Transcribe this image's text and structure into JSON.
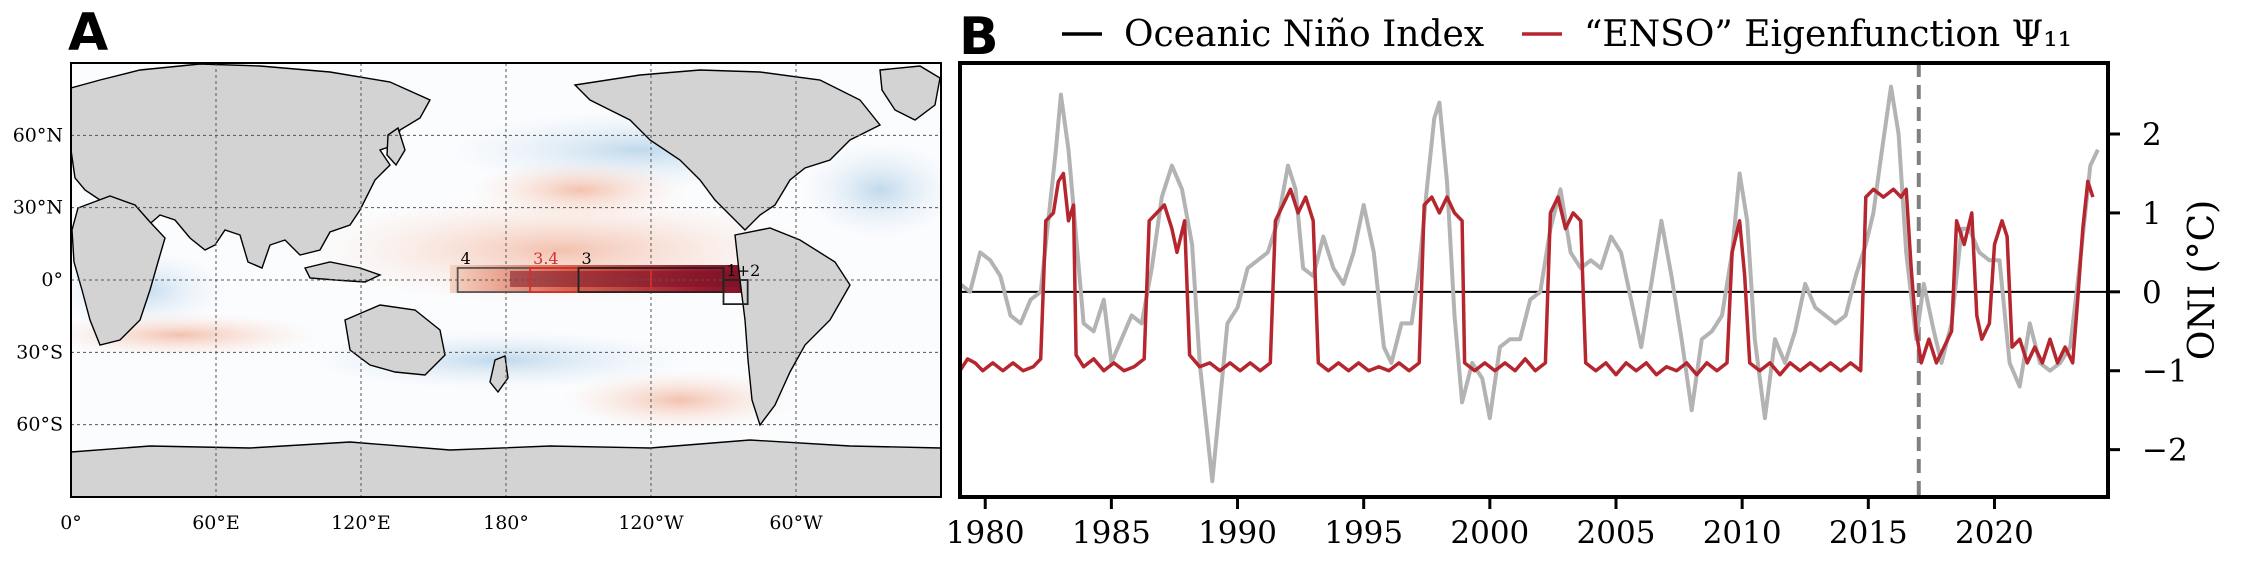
{
  "panels": {
    "a_label": "A",
    "b_label": "B"
  },
  "map": {
    "lat_ticks": [
      "60°N",
      "30°N",
      "0°",
      "30°S",
      "60°S"
    ],
    "lat_values": [
      60,
      30,
      0,
      -30,
      -60
    ],
    "lon_ticks": [
      "0°",
      "60°E",
      "120°E",
      "180°",
      "120°W",
      "60°W"
    ],
    "lon_values": [
      0,
      60,
      120,
      180,
      240,
      300
    ],
    "regions": [
      {
        "label": "4",
        "lon": [
          160,
          210
        ],
        "lat": [
          -5,
          5
        ],
        "color": "#555555"
      },
      {
        "label": "3.4",
        "lon": [
          190,
          240
        ],
        "lat": [
          -5,
          5
        ],
        "color": "#d32f2f"
      },
      {
        "label": "3",
        "lon": [
          210,
          270
        ],
        "lat": [
          -5,
          5
        ],
        "color": "#222222"
      },
      {
        "label": "1+2",
        "lon": [
          270,
          280
        ],
        "lat": [
          -10,
          0
        ],
        "color": "#222222"
      }
    ],
    "colors": {
      "land": "#d3d3d3",
      "warm": "#b2182b",
      "cool": "#9ecae1"
    }
  },
  "chart_data": {
    "type": "line",
    "legend_position": "top",
    "ylabel": "ONI (°C)",
    "xlim": [
      1979.0,
      2024.5
    ],
    "ylim": [
      -2.6,
      2.9
    ],
    "x_ticks": [
      1980,
      1985,
      1990,
      1995,
      2000,
      2005,
      2010,
      2015,
      2020
    ],
    "y_ticks": [
      -2,
      -1,
      0,
      1,
      2
    ],
    "vline": 2017.0,
    "hline": 0,
    "series": [
      {
        "name": "Oceanic Niño Index",
        "legend_color": "#000000",
        "color": "#b3b3b3",
        "points": [
          [
            1979.0,
            0.1
          ],
          [
            1979.4,
            0.0
          ],
          [
            1979.8,
            0.5
          ],
          [
            1980.2,
            0.4
          ],
          [
            1980.6,
            0.2
          ],
          [
            1981.0,
            -0.3
          ],
          [
            1981.4,
            -0.4
          ],
          [
            1981.8,
            -0.1
          ],
          [
            1982.2,
            0.0
          ],
          [
            1982.5,
            0.9
          ],
          [
            1982.8,
            1.8
          ],
          [
            1983.0,
            2.5
          ],
          [
            1983.3,
            1.8
          ],
          [
            1983.6,
            0.7
          ],
          [
            1983.9,
            -0.4
          ],
          [
            1984.3,
            -0.5
          ],
          [
            1984.7,
            -0.1
          ],
          [
            1985.0,
            -0.9
          ],
          [
            1985.4,
            -0.6
          ],
          [
            1985.8,
            -0.3
          ],
          [
            1986.2,
            -0.4
          ],
          [
            1986.6,
            0.3
          ],
          [
            1987.0,
            1.2
          ],
          [
            1987.4,
            1.6
          ],
          [
            1987.8,
            1.3
          ],
          [
            1988.2,
            0.6
          ],
          [
            1988.5,
            -0.9
          ],
          [
            1988.8,
            -1.8
          ],
          [
            1989.0,
            -2.4
          ],
          [
            1989.3,
            -1.4
          ],
          [
            1989.6,
            -0.4
          ],
          [
            1990.0,
            -0.2
          ],
          [
            1990.4,
            0.3
          ],
          [
            1990.8,
            0.4
          ],
          [
            1991.2,
            0.5
          ],
          [
            1991.6,
            0.9
          ],
          [
            1992.0,
            1.6
          ],
          [
            1992.3,
            1.3
          ],
          [
            1992.6,
            0.3
          ],
          [
            1993.0,
            0.2
          ],
          [
            1993.4,
            0.7
          ],
          [
            1993.8,
            0.3
          ],
          [
            1994.2,
            0.1
          ],
          [
            1994.6,
            0.5
          ],
          [
            1995.0,
            1.1
          ],
          [
            1995.4,
            0.5
          ],
          [
            1995.8,
            -0.7
          ],
          [
            1996.1,
            -0.9
          ],
          [
            1996.5,
            -0.4
          ],
          [
            1996.9,
            -0.4
          ],
          [
            1997.2,
            0.3
          ],
          [
            1997.5,
            1.3
          ],
          [
            1997.8,
            2.2
          ],
          [
            1998.0,
            2.4
          ],
          [
            1998.3,
            1.4
          ],
          [
            1998.6,
            -0.3
          ],
          [
            1998.9,
            -1.4
          ],
          [
            1999.3,
            -0.9
          ],
          [
            1999.7,
            -1.1
          ],
          [
            2000.0,
            -1.6
          ],
          [
            2000.4,
            -0.7
          ],
          [
            2000.8,
            -0.6
          ],
          [
            2001.2,
            -0.6
          ],
          [
            2001.6,
            -0.1
          ],
          [
            2002.0,
            0.0
          ],
          [
            2002.4,
            0.8
          ],
          [
            2002.8,
            1.3
          ],
          [
            2003.2,
            0.5
          ],
          [
            2003.6,
            0.3
          ],
          [
            2004.0,
            0.4
          ],
          [
            2004.4,
            0.3
          ],
          [
            2004.8,
            0.7
          ],
          [
            2005.2,
            0.5
          ],
          [
            2005.6,
            -0.1
          ],
          [
            2006.0,
            -0.7
          ],
          [
            2006.4,
            0.1
          ],
          [
            2006.8,
            0.9
          ],
          [
            2007.2,
            0.2
          ],
          [
            2007.6,
            -0.6
          ],
          [
            2008.0,
            -1.5
          ],
          [
            2008.4,
            -0.6
          ],
          [
            2008.8,
            -0.5
          ],
          [
            2009.2,
            -0.3
          ],
          [
            2009.6,
            0.5
          ],
          [
            2009.9,
            1.5
          ],
          [
            2010.2,
            0.9
          ],
          [
            2010.5,
            -0.6
          ],
          [
            2010.9,
            -1.6
          ],
          [
            2011.3,
            -0.6
          ],
          [
            2011.7,
            -0.9
          ],
          [
            2012.1,
            -0.5
          ],
          [
            2012.5,
            0.1
          ],
          [
            2012.9,
            -0.2
          ],
          [
            2013.3,
            -0.3
          ],
          [
            2013.7,
            -0.4
          ],
          [
            2014.1,
            -0.3
          ],
          [
            2014.5,
            0.2
          ],
          [
            2014.9,
            0.6
          ],
          [
            2015.2,
            1.0
          ],
          [
            2015.5,
            1.7
          ],
          [
            2015.9,
            2.6
          ],
          [
            2016.2,
            2.0
          ],
          [
            2016.5,
            0.5
          ],
          [
            2016.9,
            -0.6
          ],
          [
            2017.2,
            0.1
          ],
          [
            2017.6,
            -0.5
          ],
          [
            2017.9,
            -0.9
          ],
          [
            2018.3,
            -0.4
          ],
          [
            2018.7,
            0.8
          ],
          [
            2019.0,
            0.8
          ],
          [
            2019.4,
            0.5
          ],
          [
            2019.8,
            0.4
          ],
          [
            2020.2,
            0.4
          ],
          [
            2020.6,
            -0.9
          ],
          [
            2021.0,
            -1.2
          ],
          [
            2021.4,
            -0.4
          ],
          [
            2021.8,
            -0.9
          ],
          [
            2022.2,
            -1.0
          ],
          [
            2022.6,
            -0.9
          ],
          [
            2023.0,
            -0.7
          ],
          [
            2023.4,
            0.4
          ],
          [
            2023.8,
            1.6
          ],
          [
            2024.1,
            1.8
          ]
        ]
      },
      {
        "name": "“ENSO” Eigenfunction Ψ₁₁",
        "color": "#b5262e",
        "points": [
          [
            1979.0,
            -1.0
          ],
          [
            1979.3,
            -0.85
          ],
          [
            1979.6,
            -0.9
          ],
          [
            1979.9,
            -1.0
          ],
          [
            1980.3,
            -0.9
          ],
          [
            1980.7,
            -1.0
          ],
          [
            1981.1,
            -0.9
          ],
          [
            1981.5,
            -1.0
          ],
          [
            1981.9,
            -0.95
          ],
          [
            1982.2,
            -0.85
          ],
          [
            1982.4,
            0.9
          ],
          [
            1982.7,
            1.0
          ],
          [
            1982.9,
            1.4
          ],
          [
            1983.1,
            1.5
          ],
          [
            1983.3,
            0.9
          ],
          [
            1983.5,
            1.1
          ],
          [
            1983.6,
            -0.8
          ],
          [
            1983.9,
            -0.95
          ],
          [
            1984.3,
            -0.85
          ],
          [
            1984.7,
            -1.0
          ],
          [
            1985.1,
            -0.9
          ],
          [
            1985.5,
            -1.0
          ],
          [
            1985.9,
            -0.95
          ],
          [
            1986.3,
            -0.85
          ],
          [
            1986.5,
            0.9
          ],
          [
            1986.8,
            1.0
          ],
          [
            1987.1,
            1.1
          ],
          [
            1987.4,
            0.8
          ],
          [
            1987.6,
            0.5
          ],
          [
            1987.9,
            0.9
          ],
          [
            1988.1,
            -0.8
          ],
          [
            1988.5,
            -0.95
          ],
          [
            1988.9,
            -0.9
          ],
          [
            1989.3,
            -1.0
          ],
          [
            1989.7,
            -0.9
          ],
          [
            1990.1,
            -1.0
          ],
          [
            1990.5,
            -0.9
          ],
          [
            1990.9,
            -1.0
          ],
          [
            1991.3,
            -0.9
          ],
          [
            1991.5,
            0.9
          ],
          [
            1991.8,
            1.1
          ],
          [
            1992.1,
            1.3
          ],
          [
            1992.4,
            1.0
          ],
          [
            1992.7,
            1.2
          ],
          [
            1993.0,
            0.9
          ],
          [
            1993.2,
            -0.9
          ],
          [
            1993.6,
            -1.0
          ],
          [
            1994.0,
            -0.9
          ],
          [
            1994.4,
            -1.0
          ],
          [
            1994.8,
            -0.9
          ],
          [
            1995.2,
            -1.0
          ],
          [
            1995.6,
            -0.95
          ],
          [
            1996.0,
            -1.0
          ],
          [
            1996.4,
            -0.9
          ],
          [
            1996.8,
            -1.0
          ],
          [
            1997.2,
            -0.9
          ],
          [
            1997.4,
            1.1
          ],
          [
            1997.7,
            1.2
          ],
          [
            1998.0,
            1.0
          ],
          [
            1998.3,
            1.2
          ],
          [
            1998.6,
            1.0
          ],
          [
            1998.9,
            0.9
          ],
          [
            1999.0,
            -0.9
          ],
          [
            1999.4,
            -1.0
          ],
          [
            1999.8,
            -0.9
          ],
          [
            2000.2,
            -1.0
          ],
          [
            2000.6,
            -0.9
          ],
          [
            2001.0,
            -1.0
          ],
          [
            2001.4,
            -0.85
          ],
          [
            2001.8,
            -1.0
          ],
          [
            2002.2,
            -0.9
          ],
          [
            2002.4,
            1.0
          ],
          [
            2002.7,
            1.2
          ],
          [
            2003.0,
            0.8
          ],
          [
            2003.3,
            1.0
          ],
          [
            2003.6,
            0.9
          ],
          [
            2003.8,
            -0.9
          ],
          [
            2004.2,
            -1.0
          ],
          [
            2004.6,
            -0.9
          ],
          [
            2005.0,
            -1.05
          ],
          [
            2005.4,
            -0.9
          ],
          [
            2005.8,
            -1.0
          ],
          [
            2006.2,
            -0.9
          ],
          [
            2006.6,
            -1.05
          ],
          [
            2007.0,
            -0.95
          ],
          [
            2007.4,
            -1.0
          ],
          [
            2007.8,
            -0.9
          ],
          [
            2008.2,
            -1.05
          ],
          [
            2008.6,
            -0.9
          ],
          [
            2009.0,
            -1.0
          ],
          [
            2009.4,
            -0.9
          ],
          [
            2009.6,
            0.5
          ],
          [
            2009.9,
            0.9
          ],
          [
            2010.1,
            0.2
          ],
          [
            2010.3,
            -0.9
          ],
          [
            2010.7,
            -1.0
          ],
          [
            2011.1,
            -0.9
          ],
          [
            2011.5,
            -1.05
          ],
          [
            2011.9,
            -0.9
          ],
          [
            2012.3,
            -1.0
          ],
          [
            2012.7,
            -0.9
          ],
          [
            2013.1,
            -1.0
          ],
          [
            2013.5,
            -0.9
          ],
          [
            2013.9,
            -1.0
          ],
          [
            2014.3,
            -0.9
          ],
          [
            2014.7,
            -1.0
          ],
          [
            2014.9,
            1.2
          ],
          [
            2015.2,
            1.3
          ],
          [
            2015.6,
            1.2
          ],
          [
            2016.0,
            1.3
          ],
          [
            2016.3,
            1.2
          ],
          [
            2016.5,
            1.3
          ],
          [
            2016.7,
            0.3
          ],
          [
            2016.9,
            -0.5
          ],
          [
            2017.1,
            -0.9
          ],
          [
            2017.4,
            -0.6
          ],
          [
            2017.7,
            -0.9
          ],
          [
            2018.0,
            -0.7
          ],
          [
            2018.3,
            -0.5
          ],
          [
            2018.5,
            0.9
          ],
          [
            2018.8,
            0.6
          ],
          [
            2019.1,
            1.0
          ],
          [
            2019.3,
            -0.3
          ],
          [
            2019.5,
            -0.6
          ],
          [
            2019.8,
            -0.4
          ],
          [
            2020.0,
            0.6
          ],
          [
            2020.3,
            0.9
          ],
          [
            2020.5,
            0.7
          ],
          [
            2020.7,
            -0.7
          ],
          [
            2021.0,
            -0.6
          ],
          [
            2021.3,
            -0.9
          ],
          [
            2021.6,
            -0.7
          ],
          [
            2021.9,
            -0.9
          ],
          [
            2022.2,
            -0.6
          ],
          [
            2022.5,
            -0.9
          ],
          [
            2022.8,
            -0.7
          ],
          [
            2023.1,
            -0.9
          ],
          [
            2023.3,
            -0.1
          ],
          [
            2023.5,
            0.8
          ],
          [
            2023.7,
            1.4
          ],
          [
            2023.9,
            1.2
          ]
        ]
      }
    ]
  }
}
